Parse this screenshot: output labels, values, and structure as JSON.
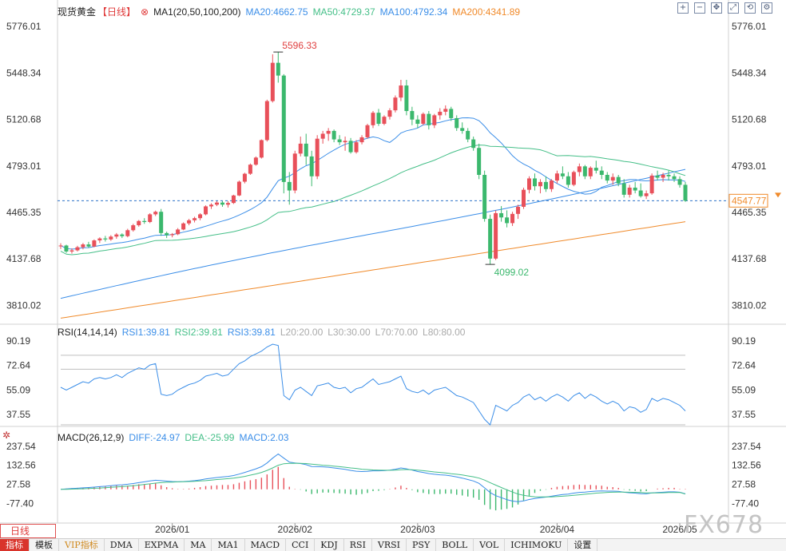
{
  "main": {
    "title": "现货黄金",
    "period": "【日线】",
    "ma_label": "MA1(20,50,100,200)",
    "ma20": "MA20:4662.75",
    "ma50": "MA50:4729.37",
    "ma100": "MA100:4792.34",
    "ma200": "MA200:4341.89",
    "high_label": "5596.33",
    "low_label": "4099.02",
    "current_price": "4547.77",
    "y_ticks": [
      "5776.01",
      "5448.34",
      "5120.68",
      "4793.01",
      "4465.35",
      "4137.68",
      "3810.02"
    ],
    "colors": {
      "up": "#e8505a",
      "down": "#3bb86d",
      "ma20": "#3b8ee8",
      "ma50": "#45bf88",
      "ma100": "#3b8ee8",
      "ma200": "#f08a2a",
      "last": "#f08a2a"
    }
  },
  "rsi": {
    "label": "RSI(14,14,14)",
    "rsi1": "RSI1:39.81",
    "rsi2": "RSI2:39.81",
    "rsi3": "RSI3:39.81",
    "l20": "L20:20.00",
    "l30": "L30:30.00",
    "l70": "L70:70.00",
    "l80": "L80:80.00",
    "y_ticks": [
      "90.19",
      "72.64",
      "55.09",
      "37.55"
    ]
  },
  "macd": {
    "label": "MACD(26,12,9)",
    "diff": "DIFF:-24.97",
    "dea": "DEA:-25.99",
    "macd": "MACD:2.03",
    "y_ticks": [
      "237.54",
      "132.56",
      "27.58",
      "-77.40"
    ]
  },
  "x_labels": [
    "2026/01",
    "2026/02",
    "2026/03",
    "2026/04",
    "2026/05"
  ],
  "period_tab": "日线",
  "indicator_tabs": [
    "指标",
    "模板",
    "VIP指标",
    "DMA",
    "EXPMA",
    "MA",
    "MA1",
    "MACD",
    "CCI",
    "KDJ",
    "RSI",
    "VRSI",
    "PSY",
    "BOLL",
    "VOL",
    "ICHIMOKU",
    "设置"
  ],
  "watermark": "FX678",
  "chart_data": {
    "type": "candlestick",
    "price_range": [
      3700,
      5850
    ],
    "candles": [
      [
        4228,
        4248,
        4208,
        4232
      ],
      [
        4232,
        4238,
        4180,
        4190
      ],
      [
        4190,
        4212,
        4175,
        4198
      ],
      [
        4198,
        4230,
        4190,
        4220
      ],
      [
        4220,
        4250,
        4205,
        4240
      ],
      [
        4240,
        4258,
        4215,
        4225
      ],
      [
        4225,
        4275,
        4220,
        4268
      ],
      [
        4268,
        4290,
        4250,
        4282
      ],
      [
        4282,
        4300,
        4260,
        4275
      ],
      [
        4275,
        4305,
        4265,
        4295
      ],
      [
        4295,
        4320,
        4280,
        4310
      ],
      [
        4310,
        4318,
        4285,
        4298
      ],
      [
        4298,
        4350,
        4290,
        4340
      ],
      [
        4340,
        4385,
        4330,
        4375
      ],
      [
        4375,
        4412,
        4365,
        4405
      ],
      [
        4405,
        4425,
        4385,
        4398
      ],
      [
        4398,
        4460,
        4390,
        4452
      ],
      [
        4452,
        4478,
        4440,
        4470
      ],
      [
        4470,
        4490,
        4300,
        4320
      ],
      [
        4320,
        4330,
        4285,
        4305
      ],
      [
        4305,
        4320,
        4290,
        4312
      ],
      [
        4312,
        4355,
        4305,
        4345
      ],
      [
        4345,
        4395,
        4340,
        4388
      ],
      [
        4388,
        4420,
        4375,
        4410
      ],
      [
        4410,
        4435,
        4395,
        4425
      ],
      [
        4425,
        4460,
        4410,
        4452
      ],
      [
        4452,
        4515,
        4445,
        4508
      ],
      [
        4508,
        4530,
        4490,
        4520
      ],
      [
        4520,
        4545,
        4510,
        4535
      ],
      [
        4535,
        4545,
        4505,
        4520
      ],
      [
        4520,
        4545,
        4500,
        4532
      ],
      [
        4532,
        4590,
        4525,
        4585
      ],
      [
        4585,
        4690,
        4580,
        4682
      ],
      [
        4682,
        4745,
        4670,
        4738
      ],
      [
        4738,
        4810,
        4730,
        4802
      ],
      [
        4802,
        4860,
        4795,
        4852
      ],
      [
        4852,
        4980,
        4845,
        4975
      ],
      [
        4975,
        5260,
        4965,
        5250
      ],
      [
        5250,
        5580,
        5240,
        5520
      ],
      [
        5520,
        5596,
        5380,
        5430
      ],
      [
        5430,
        5440,
        4600,
        4680
      ],
      [
        4680,
        4750,
        4520,
        4620
      ],
      [
        4620,
        4900,
        4600,
        4880
      ],
      [
        4880,
        5000,
        4860,
        4950
      ],
      [
        4950,
        5020,
        4800,
        4860
      ],
      [
        4860,
        4900,
        4650,
        4720
      ],
      [
        4720,
        5010,
        4700,
        4985
      ],
      [
        4985,
        5040,
        4950,
        5020
      ],
      [
        5020,
        5060,
        4970,
        5040
      ],
      [
        5040,
        5050,
        4960,
        4980
      ],
      [
        4980,
        5010,
        4940,
        4960
      ],
      [
        4960,
        5000,
        4900,
        4970
      ],
      [
        4970,
        4990,
        4880,
        4890
      ],
      [
        4890,
        4975,
        4880,
        4960
      ],
      [
        4960,
        5010,
        4945,
        4995
      ],
      [
        4995,
        5090,
        4985,
        5080
      ],
      [
        5080,
        5180,
        5060,
        5168
      ],
      [
        5168,
        5195,
        5075,
        5090
      ],
      [
        5090,
        5150,
        5080,
        5140
      ],
      [
        5140,
        5200,
        5120,
        5185
      ],
      [
        5185,
        5290,
        5170,
        5275
      ],
      [
        5275,
        5400,
        5250,
        5360
      ],
      [
        5360,
        5400,
        5150,
        5180
      ],
      [
        5180,
        5210,
        5080,
        5120
      ],
      [
        5120,
        5150,
        5060,
        5090
      ],
      [
        5090,
        5170,
        5080,
        5160
      ],
      [
        5160,
        5180,
        5050,
        5080
      ],
      [
        5080,
        5160,
        5060,
        5150
      ],
      [
        5150,
        5200,
        5120,
        5175
      ],
      [
        5175,
        5220,
        5150,
        5195
      ],
      [
        5195,
        5210,
        5110,
        5130
      ],
      [
        5130,
        5150,
        5040,
        5060
      ],
      [
        5060,
        5100,
        5020,
        5040
      ],
      [
        5040,
        5060,
        4960,
        4980
      ],
      [
        4980,
        5000,
        4900,
        4920
      ],
      [
        4920,
        4950,
        4700,
        4730
      ],
      [
        4730,
        4760,
        4400,
        4420
      ],
      [
        4420,
        4450,
        4099,
        4140
      ],
      [
        4140,
        4480,
        4130,
        4460
      ],
      [
        4460,
        4510,
        4400,
        4430
      ],
      [
        4430,
        4480,
        4360,
        4390
      ],
      [
        4390,
        4470,
        4370,
        4455
      ],
      [
        4455,
        4520,
        4420,
        4505
      ],
      [
        4505,
        4640,
        4490,
        4625
      ],
      [
        4625,
        4720,
        4600,
        4705
      ],
      [
        4705,
        4740,
        4620,
        4650
      ],
      [
        4650,
        4700,
        4600,
        4680
      ],
      [
        4680,
        4720,
        4610,
        4630
      ],
      [
        4630,
        4700,
        4610,
        4690
      ],
      [
        4690,
        4760,
        4670,
        4740
      ],
      [
        4740,
        4790,
        4700,
        4720
      ],
      [
        4720,
        4750,
        4640,
        4660
      ],
      [
        4660,
        4760,
        4650,
        4750
      ],
      [
        4750,
        4810,
        4720,
        4790
      ],
      [
        4790,
        4800,
        4700,
        4720
      ],
      [
        4720,
        4790,
        4700,
        4780
      ],
      [
        4780,
        4830,
        4740,
        4760
      ],
      [
        4760,
        4790,
        4700,
        4730
      ],
      [
        4730,
        4750,
        4670,
        4690
      ],
      [
        4690,
        4740,
        4660,
        4715
      ],
      [
        4715,
        4730,
        4650,
        4670
      ],
      [
        4670,
        4700,
        4570,
        4590
      ],
      [
        4590,
        4660,
        4570,
        4640
      ],
      [
        4640,
        4680,
        4600,
        4620
      ],
      [
        4620,
        4670,
        4570,
        4580
      ],
      [
        4580,
        4620,
        4560,
        4600
      ],
      [
        4600,
        4740,
        4590,
        4725
      ],
      [
        4725,
        4760,
        4690,
        4710
      ],
      [
        4710,
        4745,
        4680,
        4730
      ],
      [
        4730,
        4760,
        4690,
        4720
      ],
      [
        4720,
        4740,
        4680,
        4700
      ],
      [
        4700,
        4720,
        4640,
        4660
      ],
      [
        4660,
        4680,
        4540,
        4548
      ]
    ],
    "rsi": [
      57,
      55,
      57,
      59,
      61,
      60,
      63,
      64,
      63,
      64,
      66,
      64,
      67,
      69,
      71,
      70,
      73,
      74,
      52,
      51,
      52,
      55,
      57,
      59,
      60,
      62,
      65,
      66,
      67,
      65,
      66,
      70,
      74,
      76,
      79,
      81,
      83,
      86,
      88,
      87,
      51,
      48,
      55,
      57,
      54,
      51,
      58,
      59,
      60,
      57,
      56,
      57,
      53,
      56,
      57,
      60,
      63,
      59,
      60,
      61,
      63,
      65,
      56,
      54,
      53,
      55,
      52,
      55,
      56,
      57,
      54,
      51,
      50,
      48,
      46,
      40,
      34,
      30,
      44,
      42,
      40,
      44,
      46,
      50,
      52,
      48,
      50,
      47,
      50,
      52,
      50,
      47,
      51,
      53,
      49,
      52,
      50,
      47,
      45,
      47,
      45,
      40,
      43,
      42,
      39,
      41,
      49,
      47,
      49,
      48,
      46,
      44,
      40
    ],
    "diff": [
      0,
      2,
      4,
      6,
      8,
      10,
      12,
      15,
      17,
      20,
      23,
      25,
      28,
      32,
      37,
      41,
      46,
      50,
      48,
      45,
      43,
      42,
      43,
      45,
      48,
      52,
      57,
      61,
      65,
      68,
      71,
      76,
      84,
      93,
      103,
      113,
      125,
      145,
      172,
      195,
      172,
      150,
      145,
      142,
      136,
      126,
      125,
      124,
      122,
      118,
      114,
      110,
      104,
      100,
      98,
      99,
      102,
      102,
      103,
      106,
      111,
      118,
      113,
      106,
      98,
      93,
      87,
      83,
      80,
      78,
      74,
      68,
      62,
      54,
      46,
      33,
      8,
      -18,
      -35,
      -46,
      -57,
      -65,
      -68,
      -64,
      -56,
      -51,
      -46,
      -43,
      -38,
      -33,
      -29,
      -26,
      -21,
      -17,
      -15,
      -12,
      -10,
      -9,
      -10,
      -10,
      -11,
      -16,
      -19,
      -21,
      -24,
      -25,
      -20,
      -18,
      -16,
      -14,
      -14,
      -16,
      -25
    ],
    "dea": [
      0,
      0,
      1,
      2,
      3,
      4,
      6,
      7,
      9,
      11,
      13,
      15,
      18,
      20,
      23,
      27,
      30,
      34,
      37,
      39,
      40,
      41,
      42,
      43,
      44,
      46,
      48,
      51,
      54,
      56,
      59,
      62,
      66,
      71,
      78,
      85,
      93,
      104,
      118,
      133,
      141,
      143,
      144,
      143,
      142,
      139,
      136,
      133,
      131,
      128,
      125,
      122,
      118,
      115,
      111,
      109,
      107,
      106,
      105,
      105,
      106,
      108,
      109,
      108,
      106,
      103,
      100,
      96,
      93,
      90,
      86,
      83,
      79,
      74,
      69,
      62,
      51,
      37,
      23,
      10,
      -3,
      -15,
      -26,
      -33,
      -38,
      -41,
      -42,
      -42,
      -42,
      -40,
      -38,
      -36,
      -33,
      -30,
      -27,
      -24,
      -21,
      -19,
      -17,
      -16,
      -15,
      -15,
      -16,
      -17,
      -18,
      -20,
      -20,
      -20,
      -19,
      -18,
      -18,
      -17,
      -26
    ],
    "x_ticks": [
      "2026/01",
      "2026/02",
      "2026/03",
      "2026/04",
      "2026/05"
    ]
  }
}
